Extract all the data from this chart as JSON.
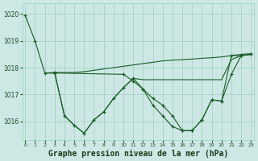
{
  "background_color": "#cde8e4",
  "grid_color": "#a0ccbf",
  "line_color": "#1a5c28",
  "xlabel": "Graphe pression niveau de la mer (hPa)",
  "xlabel_fontsize": 7.0,
  "ylim": [
    1015.3,
    1020.4
  ],
  "xlim": [
    -0.3,
    23.3
  ],
  "yticks": [
    1016,
    1017,
    1018,
    1019,
    1020
  ],
  "xticks": [
    0,
    1,
    2,
    3,
    4,
    5,
    6,
    7,
    8,
    9,
    10,
    11,
    12,
    13,
    14,
    15,
    16,
    17,
    18,
    19,
    20,
    21,
    22,
    23
  ],
  "curve1": {
    "x": [
      0,
      1,
      2,
      3,
      10,
      11,
      12,
      13,
      14,
      15,
      16,
      17,
      18,
      19,
      20,
      21,
      22,
      23
    ],
    "y": [
      1019.95,
      1019.0,
      1017.8,
      1017.8,
      1017.75,
      1017.5,
      1017.2,
      1016.6,
      1016.2,
      1015.8,
      1015.65,
      1015.65,
      1016.05,
      1016.8,
      1016.75,
      1017.75,
      1018.45,
      1018.5
    ],
    "markers": true
  },
  "curve2": {
    "x": [
      2,
      3,
      4,
      5,
      6,
      7,
      8,
      9,
      10,
      11,
      12,
      13,
      14,
      15,
      16,
      17,
      18,
      19,
      20,
      21,
      22,
      23
    ],
    "y": [
      1017.8,
      1017.8,
      1016.2,
      1015.85,
      1015.55,
      1016.05,
      1016.35,
      1016.85,
      1017.25,
      1017.6,
      1017.55,
      1017.55,
      1017.55,
      1017.55,
      1017.55,
      1017.55,
      1017.55,
      1017.55,
      1017.55,
      1018.3,
      1018.45,
      1018.5
    ],
    "markers": false
  },
  "curve3": {
    "x": [
      2,
      3,
      4,
      5,
      6,
      7,
      8,
      9,
      10,
      11,
      12,
      13,
      14,
      15,
      16,
      17,
      18,
      19,
      20,
      21,
      22,
      23
    ],
    "y": [
      1017.8,
      1017.82,
      1017.82,
      1017.82,
      1017.85,
      1017.9,
      1017.95,
      1018.0,
      1018.05,
      1018.1,
      1018.15,
      1018.2,
      1018.25,
      1018.28,
      1018.3,
      1018.32,
      1018.35,
      1018.37,
      1018.4,
      1018.45,
      1018.5,
      1018.52
    ],
    "markers": false
  },
  "curve4": {
    "x": [
      3,
      4,
      5,
      6,
      7,
      8,
      9,
      10,
      11,
      12,
      13,
      14,
      15,
      16,
      17,
      18,
      19,
      20,
      21,
      22,
      23
    ],
    "y": [
      1017.82,
      1016.2,
      1015.85,
      1015.55,
      1016.05,
      1016.35,
      1016.85,
      1017.25,
      1017.6,
      1017.2,
      1016.85,
      1016.6,
      1016.2,
      1015.65,
      1015.65,
      1016.05,
      1016.8,
      1016.75,
      1018.45,
      1018.45,
      1018.5
    ],
    "markers": true
  }
}
